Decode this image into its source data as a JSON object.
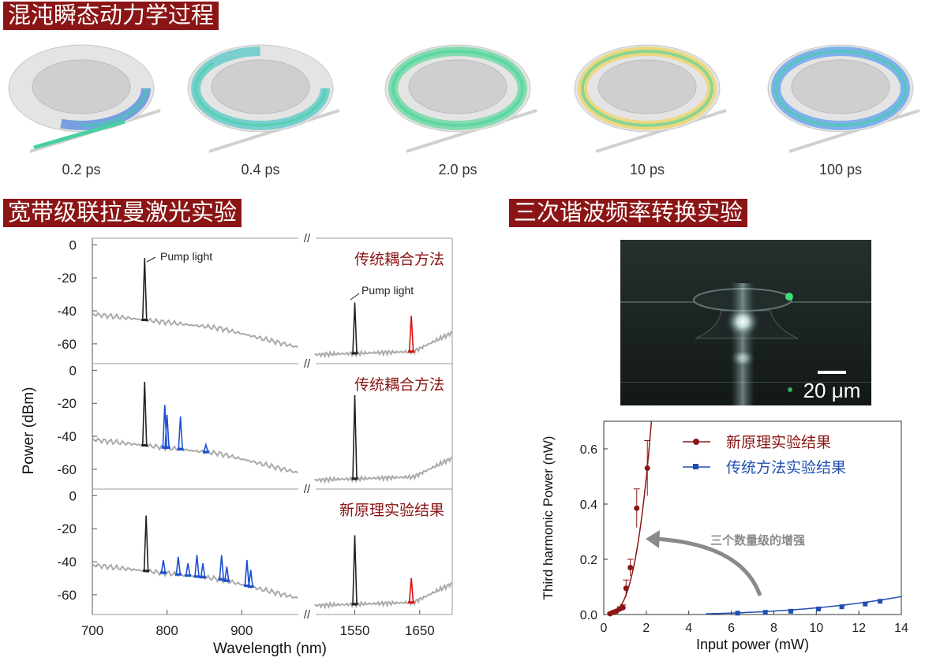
{
  "sections": {
    "chaos_title": "混沌瞬态动力学过程",
    "raman_title": "宽带级联拉曼激光实验",
    "thg_title": "三次谐波频率转换实验"
  },
  "chaos": {
    "frames": [
      {
        "label": "0.2 ps",
        "fill_fraction": 0.25
      },
      {
        "label": "0.4 ps",
        "fill_fraction": 0.6
      },
      {
        "label": "2.0 ps",
        "fill_fraction": 1.0
      },
      {
        "label": "10 ps",
        "fill_fraction": 1.0
      },
      {
        "label": "100 ps",
        "fill_fraction": 1.0
      }
    ]
  },
  "colors": {
    "title_bg": "#8b1515",
    "pump": "#222222",
    "raman": "#1c4fd0",
    "red_peak": "#e01010",
    "baseline": "#aaaaaa",
    "new_series": "#8b1515",
    "conv_series": "#1f4fb0"
  },
  "microscope": {
    "scale_label": "20 μm"
  },
  "chart_data": [
    {
      "type": "line",
      "ylabel": "Power (dBm)",
      "xlabel": "Wavelength (nm)",
      "x_ticks": [
        "700",
        "800",
        "900",
        "1550",
        "1650"
      ],
      "y_ticks": [
        "0",
        "-20",
        "-40",
        "-60"
      ],
      "ylim": [
        -72,
        4
      ],
      "axis_break": "//",
      "panels": [
        {
          "label": "传统耦合方法",
          "pump_annotations": [
            "Pump light",
            "Pump light"
          ],
          "pump_peaks": [
            {
              "x": 770,
              "y": -8
            },
            {
              "x": 1550,
              "y": -35
            }
          ],
          "raman_peaks": [],
          "red_peaks": [
            {
              "x": 1637,
              "y": -43
            }
          ]
        },
        {
          "label": "传统耦合方法",
          "pump_peaks": [
            {
              "x": 770,
              "y": -7
            },
            {
              "x": 1550,
              "y": -15
            }
          ],
          "raman_peaks": [
            {
              "x": 797,
              "y": -21
            },
            {
              "x": 800,
              "y": -27
            },
            {
              "x": 818,
              "y": -28
            },
            {
              "x": 852,
              "y": -45
            }
          ],
          "red_peaks": []
        },
        {
          "label": "新原理实验结果",
          "pump_peaks": [
            {
              "x": 772,
              "y": -12
            },
            {
              "x": 1550,
              "y": -24
            }
          ],
          "raman_peaks": [
            {
              "x": 795,
              "y": -39
            },
            {
              "x": 815,
              "y": -37
            },
            {
              "x": 828,
              "y": -41
            },
            {
              "x": 840,
              "y": -36
            },
            {
              "x": 848,
              "y": -41
            },
            {
              "x": 873,
              "y": -36
            },
            {
              "x": 880,
              "y": -43
            },
            {
              "x": 907,
              "y": -39
            },
            {
              "x": 912,
              "y": -45
            }
          ],
          "red_peaks": [
            {
              "x": 1637,
              "y": -50
            }
          ]
        }
      ]
    },
    {
      "type": "scatter",
      "xlabel": "Input power (mW)",
      "ylabel": "Third harmonic Power (nW)",
      "xlim": [
        0,
        14
      ],
      "ylim": [
        0,
        0.7
      ],
      "x_ticks": [
        "0",
        "2",
        "4",
        "6",
        "8",
        "10",
        "12",
        "14"
      ],
      "y_ticks": [
        "0.0",
        "0.2",
        "0.4",
        "0.6"
      ],
      "series": [
        {
          "name": "新原理实验结果",
          "x": [
            0.3,
            0.45,
            0.6,
            0.75,
            0.9,
            1.05,
            1.25,
            1.55,
            2.05
          ],
          "y": [
            0.003,
            0.008,
            0.012,
            0.02,
            0.025,
            0.095,
            0.17,
            0.385,
            0.53
          ],
          "err": [
            0.003,
            0.004,
            0.005,
            0.008,
            0.01,
            0.03,
            0.03,
            0.07,
            0.1
          ]
        },
        {
          "name": "传统方法实验结果",
          "x": [
            6.3,
            7.6,
            8.8,
            10.1,
            11.2,
            12.3,
            13.0
          ],
          "y": [
            0.005,
            0.008,
            0.012,
            0.02,
            0.028,
            0.038,
            0.048
          ],
          "err": [
            0.002,
            0.002,
            0.003,
            0.003,
            0.004,
            0.004,
            0.004
          ]
        }
      ],
      "annotation": "三个数量级的增强"
    }
  ]
}
